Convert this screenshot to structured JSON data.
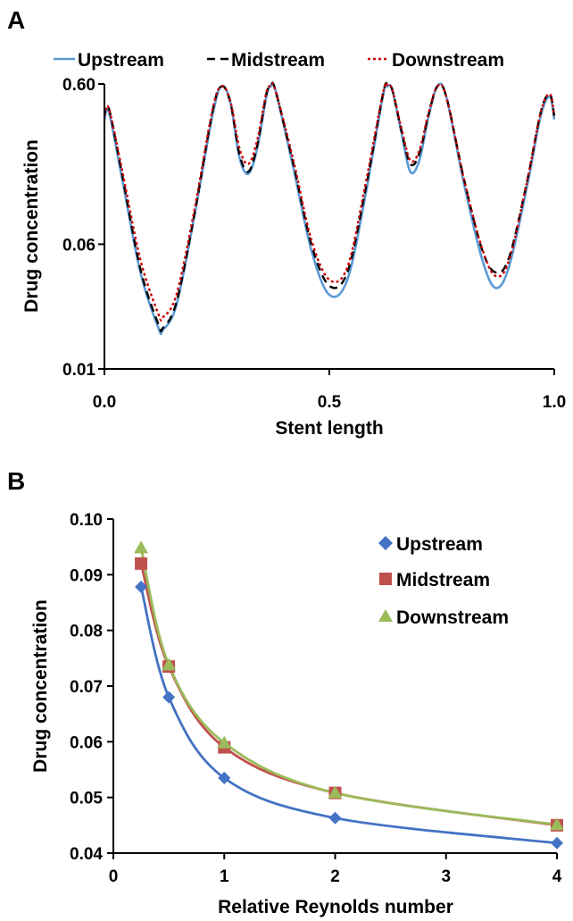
{
  "panels": [
    {
      "label": "A",
      "chart_data": {
        "type": "line",
        "xlabel": "Stent length",
        "ylabel": "Drug concentration",
        "xlim": [
          0,
          1
        ],
        "ylim": [
          0.01,
          0.6
        ],
        "yscale": "log",
        "x_ticks": [
          "0.0",
          "0.5",
          "1.0"
        ],
        "x_tick_values": [
          0,
          0.5,
          1
        ],
        "y_ticks": [
          "0.01",
          "0.06",
          "0.60"
        ],
        "y_tick_values": [
          0.01,
          0.06,
          0.6
        ],
        "grid": false,
        "legend_position": "top",
        "series": [
          {
            "name": "Upstream",
            "color": "#5b9bd5",
            "style": "solid",
            "x": [
              0,
              0.01,
              0.04,
              0.08,
              0.12,
              0.13,
              0.16,
              0.2,
              0.24,
              0.26,
              0.28,
              0.3,
              0.32,
              0.34,
              0.36,
              0.37,
              0.38,
              0.42,
              0.46,
              0.5,
              0.54,
              0.58,
              0.62,
              0.63,
              0.64,
              0.66,
              0.68,
              0.7,
              0.72,
              0.74,
              0.76,
              0.8,
              0.84,
              0.87,
              0.9,
              0.94,
              0.97,
              0.99,
              1
            ],
            "values": [
              0.36,
              0.4,
              0.15,
              0.04,
              0.018,
              0.0175,
              0.025,
              0.09,
              0.38,
              0.58,
              0.46,
              0.21,
              0.165,
              0.24,
              0.5,
              0.58,
              0.55,
              0.18,
              0.055,
              0.029,
              0.036,
              0.12,
              0.52,
              0.58,
              0.55,
              0.3,
              0.17,
              0.2,
              0.37,
              0.58,
              0.5,
              0.14,
              0.048,
              0.032,
              0.044,
              0.14,
              0.38,
              0.5,
              0.36
            ]
          },
          {
            "name": "Midstream",
            "color": "#000000",
            "style": "dashed",
            "x": [
              0,
              0.01,
              0.04,
              0.08,
              0.12,
              0.13,
              0.16,
              0.2,
              0.24,
              0.26,
              0.28,
              0.3,
              0.32,
              0.34,
              0.36,
              0.37,
              0.38,
              0.42,
              0.46,
              0.5,
              0.54,
              0.58,
              0.62,
              0.63,
              0.64,
              0.66,
              0.68,
              0.7,
              0.72,
              0.74,
              0.76,
              0.8,
              0.84,
              0.87,
              0.9,
              0.94,
              0.97,
              0.99,
              1
            ],
            "values": [
              0.38,
              0.42,
              0.16,
              0.042,
              0.019,
              0.018,
              0.026,
              0.092,
              0.4,
              0.58,
              0.46,
              0.22,
              0.17,
              0.25,
              0.52,
              0.58,
              0.55,
              0.19,
              0.06,
              0.033,
              0.04,
              0.13,
              0.53,
              0.58,
              0.55,
              0.31,
              0.19,
              0.22,
              0.38,
              0.58,
              0.5,
              0.15,
              0.055,
              0.04,
              0.05,
              0.15,
              0.4,
              0.52,
              0.38
            ]
          },
          {
            "name": "Downstream",
            "color": "#cc0000",
            "style": "dotted",
            "x": [
              0,
              0.01,
              0.04,
              0.08,
              0.12,
              0.13,
              0.16,
              0.2,
              0.24,
              0.26,
              0.28,
              0.3,
              0.32,
              0.34,
              0.36,
              0.37,
              0.38,
              0.42,
              0.46,
              0.5,
              0.54,
              0.58,
              0.62,
              0.63,
              0.64,
              0.66,
              0.68,
              0.7,
              0.72,
              0.74,
              0.76,
              0.8,
              0.84,
              0.87,
              0.9,
              0.94,
              0.97,
              0.99,
              1
            ],
            "values": [
              0.38,
              0.42,
              0.17,
              0.048,
              0.022,
              0.021,
              0.029,
              0.098,
              0.41,
              0.58,
              0.47,
              0.24,
              0.19,
              0.27,
              0.53,
              0.58,
              0.55,
              0.2,
              0.064,
              0.036,
              0.043,
              0.14,
              0.54,
              0.58,
              0.55,
              0.32,
              0.2,
              0.23,
              0.39,
              0.58,
              0.5,
              0.15,
              0.056,
              0.038,
              0.048,
              0.15,
              0.4,
              0.52,
              0.38
            ]
          }
        ]
      }
    },
    {
      "label": "B",
      "chart_data": {
        "type": "line",
        "xlabel": "Relative Reynolds number",
        "ylabel": "Drug concentration",
        "xlim": [
          0,
          4
        ],
        "ylim": [
          0.04,
          0.1
        ],
        "xscale": "reciprocal-like",
        "x_ticks": [
          "0",
          "1",
          "2",
          "3",
          "4"
        ],
        "x_tick_values": [
          0,
          1,
          2,
          3,
          4
        ],
        "y_ticks": [
          "0.04",
          "0.05",
          "0.06",
          "0.07",
          "0.08",
          "0.09",
          "0.10"
        ],
        "y_tick_values": [
          0.04,
          0.05,
          0.06,
          0.07,
          0.08,
          0.09,
          0.1
        ],
        "grid": false,
        "legend_position": "top-right",
        "series": [
          {
            "name": "Upstream",
            "color": "#4472c4",
            "marker": "diamond",
            "x": [
              0.25,
              0.5,
              1,
              2,
              4
            ],
            "values": [
              0.0878,
              0.068,
              0.0535,
              0.0463,
              0.0418
            ]
          },
          {
            "name": "Midstream",
            "color": "#c0504d",
            "marker": "square",
            "x": [
              0.25,
              0.5,
              1,
              2,
              4
            ],
            "values": [
              0.092,
              0.0735,
              0.059,
              0.0508,
              0.045
            ]
          },
          {
            "name": "Downstream",
            "color": "#9bbb59",
            "marker": "triangle",
            "x": [
              0.25,
              0.5,
              1,
              2,
              4
            ],
            "values": [
              0.0948,
              0.0738,
              0.0598,
              0.0508,
              0.0451
            ]
          }
        ]
      }
    }
  ]
}
